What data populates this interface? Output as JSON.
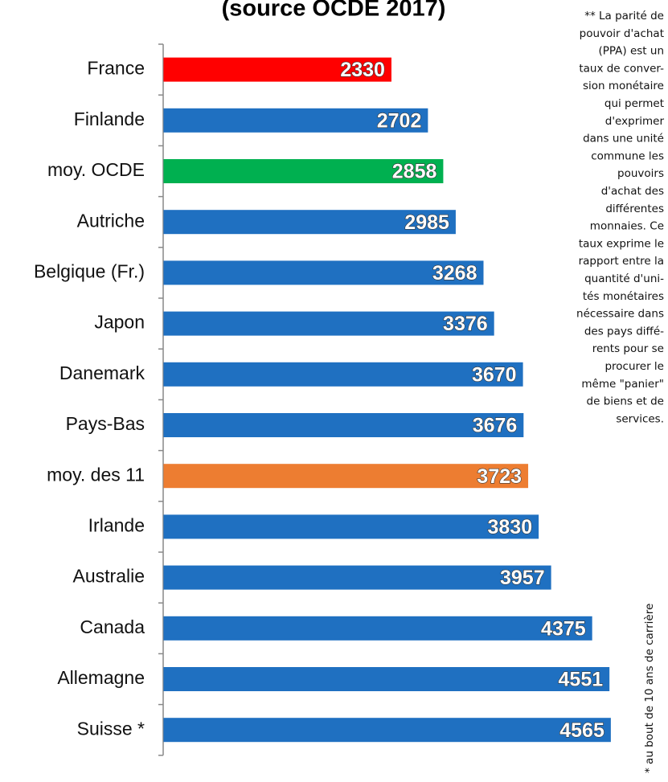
{
  "chart_data": {
    "type": "barh",
    "title": "(source OCDE 2017)",
    "categories": [
      "France",
      "Finlande",
      "moy. OCDE",
      "Autriche",
      "Belgique (Fr.)",
      "Japon",
      "Danemark",
      "Pays-Bas",
      "moy. des 11",
      "Irlande",
      "Australie",
      "Canada",
      "Allemagne",
      "Suisse *"
    ],
    "values": [
      2330,
      2702,
      2858,
      2985,
      3268,
      3376,
      3670,
      3676,
      3723,
      3830,
      3957,
      4375,
      4551,
      4565
    ],
    "colors": [
      "#ff0000",
      "#1f70c1",
      "#00b050",
      "#1f70c1",
      "#1f70c1",
      "#1f70c1",
      "#1f70c1",
      "#1f70c1",
      "#ed7d31",
      "#1f70c1",
      "#1f70c1",
      "#1f70c1",
      "#1f70c1",
      "#1f70c1"
    ],
    "xlim": [
      0,
      5000
    ],
    "note_lines": [
      "** La parité de",
      "pouvoir d'achat",
      "(PPA) est un",
      "taux de conver-",
      "sion monétaire",
      "qui permet",
      "d'exprimer",
      "dans une unité",
      "commune les",
      "pouvoirs",
      "d'achat des",
      "différentes",
      "monnaies. Ce",
      "taux exprime le",
      "rapport entre la",
      "quantité d'uni-",
      "tés monétaires",
      "nécessaire dans",
      "des pays diffé-",
      "rents pour se",
      "procurer le",
      "même \"panier\"",
      "de biens et de",
      "services."
    ],
    "footnote": "* au bout de 10 ans de carrière"
  }
}
